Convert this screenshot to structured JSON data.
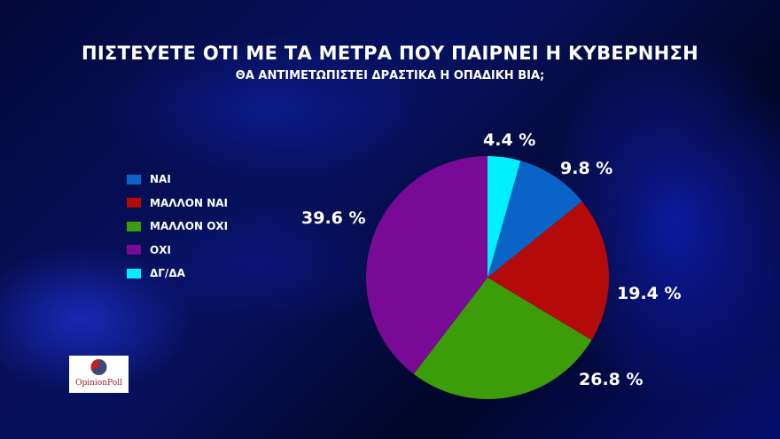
{
  "title": "ΠΙΣΤΕΥΕΤΕ ΟΤΙ ΜΕ ΤΑ ΜΕΤΡΑ ΠΟΥ ΠΑΙΡΝΕΙ Η ΚΥΒΕΡΝΗΣΗ",
  "subtitle": "ΘΑ ΑΝΤΙΜΕΤΩΠΙΣΤΕΙ ΔΡΑΣΤΙΚΑ Η ΟΠΑΔΙΚΗ ΒΙΑ;",
  "legend": [
    {
      "label": "ΝΑΙ",
      "color": "#0a64c8"
    },
    {
      "label": "ΜΑΛΛΟΝ ΝΑΙ",
      "color": "#b40a0a"
    },
    {
      "label": "ΜΑΛΛΟΝ ΟΧΙ",
      "color": "#3c9c0a"
    },
    {
      "label": "ΟΧΙ",
      "color": "#780a96"
    },
    {
      "label": "ΔΓ/ΔΑ",
      "color": "#00f0ff"
    }
  ],
  "labels": {
    "dgda": "4.4 %",
    "nai": "9.8 %",
    "mallon_nai": "19.4 %",
    "mallon_oxi": "26.8 %",
    "oxi": "39.6 %"
  },
  "logo": {
    "text": "OpinionPoll"
  },
  "chart_data": {
    "type": "pie",
    "title": "ΠΙΣΤΕΥΕΤΕ ΟΤΙ ΜΕ ΤΑ ΜΕΤΡΑ ΠΟΥ ΠΑΙΡΝΕΙ Η ΚΥΒΕΡΝΗΣΗ",
    "subtitle": "ΘΑ ΑΝΤΙΜΕΤΩΠΙΣΤΕΙ ΔΡΑΣΤΙΚΑ Η ΟΠΑΔΙΚΗ ΒΙΑ;",
    "categories": [
      "ΔΓ/ΔΑ",
      "ΝΑΙ",
      "ΜΑΛΛΟΝ ΝΑΙ",
      "ΜΑΛΛΟΝ ΟΧΙ",
      "ΟΧΙ"
    ],
    "values": [
      4.4,
      9.8,
      19.4,
      26.8,
      39.6
    ],
    "colors": [
      "#00f0ff",
      "#0a64c8",
      "#b40a0a",
      "#3c9c0a",
      "#780a96"
    ],
    "unit": "%",
    "start_angle": "top, clockwise",
    "legend_position": "left"
  }
}
